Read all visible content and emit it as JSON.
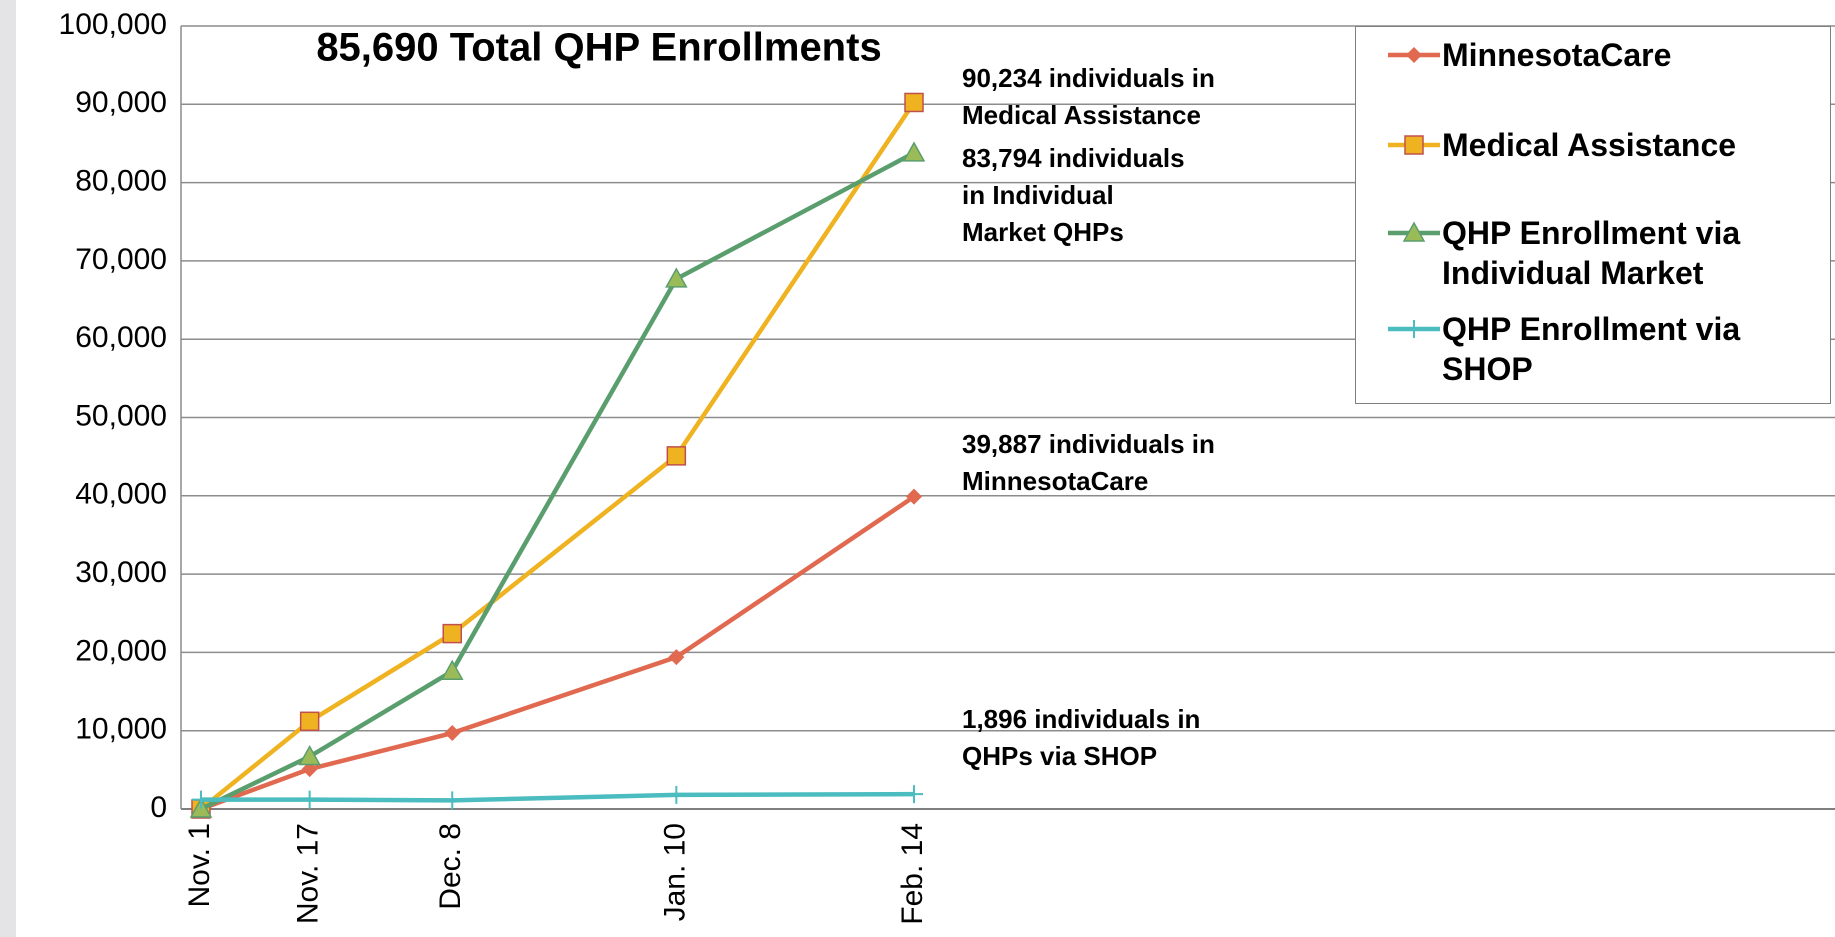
{
  "chart_data": {
    "type": "line",
    "title": "85,690 Total QHP Enrollments",
    "categories": [
      "Nov. 1",
      "Nov. 17",
      "Dec. 8",
      "Jan. 10",
      "Feb. 14"
    ],
    "series": [
      {
        "name": "MinnesotaCare",
        "color": "#e0694f",
        "marker": "diamond",
        "values": [
          0,
          5100,
          9700,
          19400,
          39887
        ]
      },
      {
        "name": "Medical Assistance",
        "color": "#efb220",
        "marker": "square",
        "values": [
          0,
          11200,
          22400,
          45100,
          90234
        ]
      },
      {
        "name": "QHP Enrollment via Individual Market",
        "color": "#5a9e6e",
        "marker": "triangle",
        "values": [
          0,
          6700,
          17600,
          67700,
          83794
        ]
      },
      {
        "name": "QHP Enrollment via SHOP",
        "color": "#4bbcbf",
        "marker": "plus",
        "values": [
          1200,
          1200,
          1100,
          1800,
          1896
        ]
      }
    ],
    "annotations": [
      {
        "lines": [
          "90,234 individuals in",
          "Medical Assistance"
        ]
      },
      {
        "lines": [
          "83,794 individuals",
          "in Individual",
          "Market QHPs"
        ]
      },
      {
        "lines": [
          "39,887 individuals in",
          "MinnesotaCare"
        ]
      },
      {
        "lines": [
          "1,896 individuals in",
          "QHPs via SHOP"
        ]
      }
    ],
    "ylim": [
      0,
      100000
    ],
    "yticks": [
      0,
      {
        "value": 10000,
        "label": "10,000"
      },
      {
        "value": 20000,
        "label": "20,000"
      },
      {
        "value": 30000,
        "label": "30,000"
      },
      {
        "value": 40000,
        "label": "40,000"
      },
      {
        "value": 50000,
        "label": "50,000"
      },
      {
        "value": 60000,
        "label": "60,000"
      },
      {
        "value": 70000,
        "label": "70,000"
      },
      {
        "value": 80000,
        "label": "80,000"
      },
      {
        "value": 90000,
        "label": "90,000"
      },
      {
        "value": 100000,
        "label": "100,000"
      }
    ],
    "grid": true,
    "legend": "top-right"
  }
}
